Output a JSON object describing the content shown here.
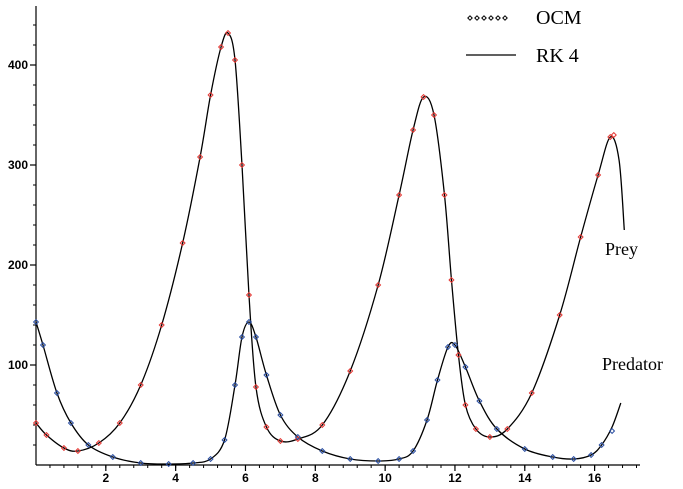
{
  "chart_data": {
    "type": "line",
    "title": "",
    "xlabel": "",
    "ylabel": "",
    "xlim": [
      0,
      17.3
    ],
    "ylim": [
      0,
      455
    ],
    "xticks": [
      "2",
      "4",
      "6",
      "8",
      "10",
      "12",
      "14",
      "16"
    ],
    "yticks": [
      "100",
      "200",
      "300",
      "400"
    ],
    "legend": {
      "placement": "top-right",
      "entries": [
        {
          "label": "OCM",
          "style": "diamond-markers"
        },
        {
          "label": "RK 4",
          "style": "solid-line"
        }
      ]
    },
    "annotations": [
      {
        "text": "Prey"
      },
      {
        "text": "Predator"
      }
    ],
    "colors": {
      "prey_markers": "#e53935",
      "predator_markers": "#2b4fa2",
      "line": "#000000"
    },
    "series": [
      {
        "id": "prey_rk4",
        "x": [
          0,
          0.3,
          0.8,
          1.2,
          1.8,
          2.4,
          3.0,
          3.6,
          4.2,
          4.7,
          5.0,
          5.3,
          5.5,
          5.7,
          5.9,
          6.1,
          6.3,
          6.6,
          7.0,
          7.5,
          8.2,
          9.0,
          9.8,
          10.4,
          10.8,
          11.1,
          11.4,
          11.7,
          11.9,
          12.1,
          12.3,
          12.6,
          13.0,
          13.5,
          14.2,
          15.0,
          15.6,
          16.1,
          16.45,
          16.7,
          16.85
        ],
        "y": [
          42,
          30,
          17,
          14,
          22,
          42,
          80,
          140,
          222,
          308,
          370,
          418,
          432,
          405,
          300,
          170,
          78,
          38,
          24,
          26,
          40,
          94,
          180,
          270,
          335,
          368,
          350,
          270,
          185,
          110,
          60,
          36,
          28,
          36,
          72,
          150,
          228,
          290,
          328,
          305,
          235
        ]
      },
      {
        "id": "predator_rk4",
        "x": [
          0,
          0.2,
          0.6,
          1.0,
          1.5,
          2.2,
          3.0,
          3.8,
          4.5,
          5.0,
          5.4,
          5.7,
          5.9,
          6.1,
          6.3,
          6.6,
          7.0,
          7.5,
          8.2,
          9.0,
          9.8,
          10.4,
          10.8,
          11.2,
          11.5,
          11.8,
          12.0,
          12.3,
          12.7,
          13.2,
          14.0,
          14.8,
          15.4,
          15.9,
          16.2,
          16.5,
          16.75
        ],
        "y": [
          143,
          120,
          72,
          42,
          20,
          8,
          2,
          1,
          2,
          6,
          25,
          80,
          128,
          143,
          128,
          90,
          50,
          28,
          14,
          6,
          4,
          6,
          14,
          45,
          85,
          118,
          120,
          98,
          64,
          36,
          16,
          8,
          6,
          10,
          20,
          38,
          62
        ]
      },
      {
        "id": "prey_ocm",
        "marker": "diamond",
        "x": [
          0,
          0.3,
          0.8,
          1.2,
          1.8,
          2.4,
          3.0,
          3.6,
          4.2,
          4.7,
          5.0,
          5.3,
          5.5,
          5.7,
          5.9,
          6.1,
          6.3,
          6.6,
          7.0,
          7.5,
          8.2,
          9.0,
          9.8,
          10.4,
          10.8,
          11.1,
          11.4,
          11.7,
          11.9,
          12.1,
          12.3,
          12.6,
          13.0,
          13.5,
          14.2,
          15.0,
          15.6,
          16.1,
          16.45,
          16.55
        ],
        "y": [
          42,
          30,
          17,
          14,
          22,
          42,
          80,
          140,
          222,
          308,
          370,
          418,
          432,
          405,
          300,
          170,
          78,
          38,
          24,
          26,
          40,
          94,
          180,
          270,
          335,
          368,
          350,
          270,
          185,
          110,
          60,
          36,
          28,
          36,
          72,
          150,
          228,
          290,
          328,
          330
        ]
      },
      {
        "id": "predator_ocm",
        "marker": "diamond",
        "x": [
          0,
          0.2,
          0.6,
          1.0,
          1.5,
          2.2,
          3.0,
          3.8,
          4.5,
          5.0,
          5.4,
          5.7,
          5.9,
          6.1,
          6.3,
          6.6,
          7.0,
          7.5,
          8.2,
          9.0,
          9.8,
          10.4,
          10.8,
          11.2,
          11.5,
          11.8,
          12.0,
          12.3,
          12.7,
          13.2,
          14.0,
          14.8,
          15.4,
          15.9,
          16.2,
          16.5
        ],
        "y": [
          143,
          120,
          72,
          42,
          20,
          8,
          2,
          1,
          2,
          6,
          25,
          80,
          128,
          143,
          128,
          90,
          50,
          28,
          14,
          6,
          4,
          6,
          14,
          45,
          85,
          118,
          120,
          98,
          64,
          36,
          16,
          8,
          6,
          10,
          20,
          34
        ]
      }
    ]
  }
}
